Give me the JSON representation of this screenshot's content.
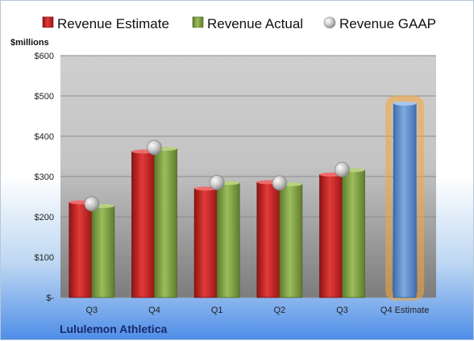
{
  "chart_data": {
    "type": "bar",
    "company": "Lululemon Athletica",
    "ylabel": "$millions",
    "ylim": [
      0,
      600
    ],
    "yticks": [
      {
        "value": 0,
        "label": "$-"
      },
      {
        "value": 100,
        "label": "$100"
      },
      {
        "value": 200,
        "label": "$200"
      },
      {
        "value": 300,
        "label": "$300"
      },
      {
        "value": 400,
        "label": "$400"
      },
      {
        "value": 500,
        "label": "$500"
      },
      {
        "value": 600,
        "label": "$600"
      }
    ],
    "categories": [
      "Q3",
      "Q4",
      "Q1",
      "Q2",
      "Q3",
      "Q4 Estimate"
    ],
    "series": [
      {
        "name": "Revenue Estimate",
        "kind": "bar",
        "color": "#d42a2a",
        "values": [
          236,
          362,
          270,
          286,
          305,
          481
        ]
      },
      {
        "name": "Revenue Actual",
        "kind": "bar",
        "color": "#8fb04c",
        "values": [
          227,
          369,
          284,
          281,
          316,
          null
        ]
      },
      {
        "name": "Revenue GAAP",
        "kind": "marker",
        "color": "#b8b8b8",
        "values": [
          232,
          372,
          285,
          284,
          317,
          null
        ]
      }
    ],
    "highlight": {
      "category_index": 5,
      "bar_color": "#6f9fd8",
      "glow_color": "#f6a53a"
    },
    "grid": true,
    "legend": "top"
  }
}
